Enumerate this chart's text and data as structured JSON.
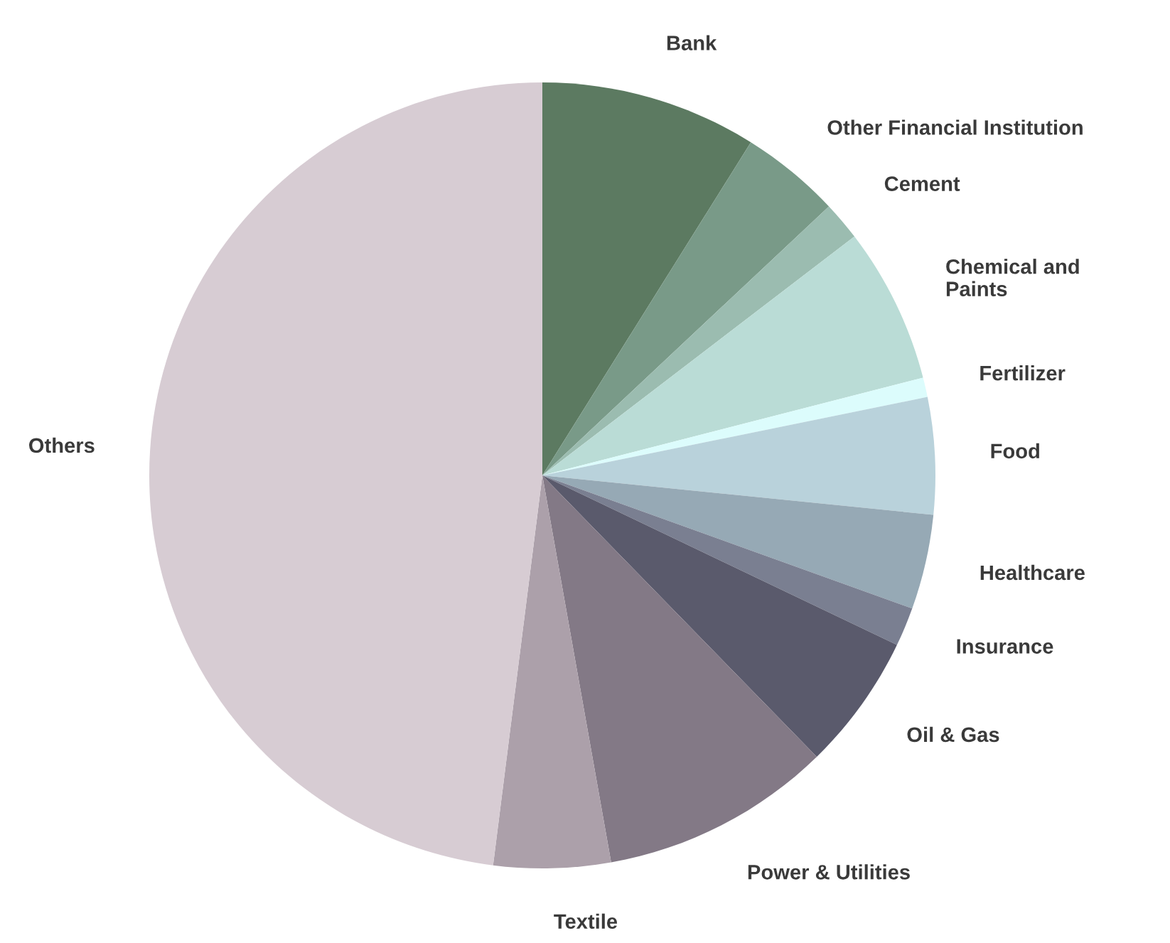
{
  "chart_data": {
    "type": "pie",
    "categories": [
      "Bank",
      "Other Financial Institution",
      "Cement",
      "Chemical and\nPaints",
      "Fertilizer",
      "Food",
      "Healthcare",
      "Insurance",
      "Oil & Gas",
      "Power & Utilities",
      "Textile",
      "Others"
    ],
    "values": [
      8.9,
      4.1,
      1.6,
      6.4,
      0.8,
      4.8,
      3.9,
      1.6,
      5.6,
      9.5,
      4.8,
      48.0
    ],
    "colors": [
      "#5c7a61",
      "#799a88",
      "#9bbcb0",
      "#badcd6",
      "#dcfcfc",
      "#b9d2db",
      "#96a9b5",
      "#7a7f91",
      "#5a5a6c",
      "#837986",
      "#aca0aa",
      "#d7ccd3"
    ],
    "legend": false
  }
}
